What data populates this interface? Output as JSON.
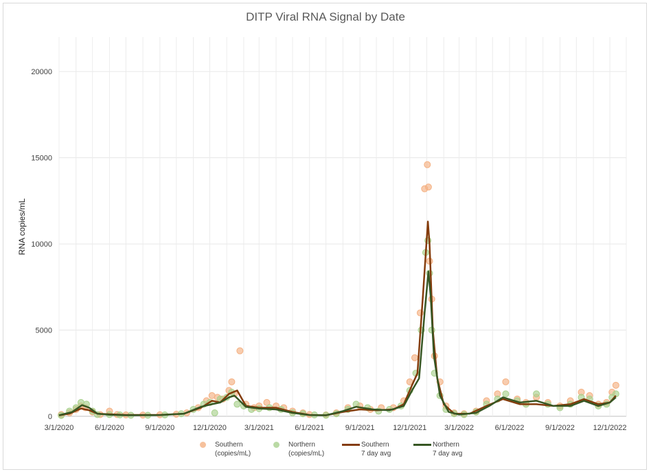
{
  "chart_data": {
    "type": "scatter",
    "title": "DITP Viral RNA Signal by Date",
    "ylabel": "RNA copies/mL",
    "xlabel": "",
    "ylim": [
      0,
      22000
    ],
    "xlim": [
      "2020-03-01",
      "2022-12-31"
    ],
    "yticks": [
      0,
      5000,
      10000,
      15000,
      20000
    ],
    "xticks": [
      "3/1/2020",
      "6/1/2020",
      "9/1/2020",
      "12/1/2020",
      "3/1/2021",
      "6/1/2021",
      "9/1/2021",
      "12/1/2021",
      "3/1/2022",
      "6/1/2022",
      "9/1/2022",
      "12/1/2022"
    ],
    "grid": true,
    "legend_position": "bottom",
    "colors": {
      "southern_points": "#f4b183",
      "northern_points": "#a9d18e",
      "southern_avg": "#843c0c",
      "northern_avg": "#375623"
    },
    "series": [
      {
        "name": "Southern (copies/mL)",
        "kind": "points",
        "points": [
          [
            "2020-03-05",
            100
          ],
          [
            "2020-03-20",
            200
          ],
          [
            "2020-04-01",
            400
          ],
          [
            "2020-04-10",
            600
          ],
          [
            "2020-04-18",
            500
          ],
          [
            "2020-05-01",
            250
          ],
          [
            "2020-05-15",
            100
          ],
          [
            "2020-06-01",
            300
          ],
          [
            "2020-06-15",
            100
          ],
          [
            "2020-07-01",
            80
          ],
          [
            "2020-08-01",
            70
          ],
          [
            "2020-09-01",
            90
          ],
          [
            "2020-10-01",
            120
          ],
          [
            "2020-10-20",
            200
          ],
          [
            "2020-11-10",
            500
          ],
          [
            "2020-11-25",
            900
          ],
          [
            "2020-12-05",
            1200
          ],
          [
            "2020-12-15",
            1100
          ],
          [
            "2020-12-25",
            1000
          ],
          [
            "2021-01-05",
            1500
          ],
          [
            "2021-01-10",
            2000
          ],
          [
            "2021-01-15",
            1300
          ],
          [
            "2021-01-25",
            3800
          ],
          [
            "2021-02-05",
            700
          ],
          [
            "2021-02-20",
            500
          ],
          [
            "2021-03-01",
            600
          ],
          [
            "2021-03-15",
            800
          ],
          [
            "2021-04-01",
            600
          ],
          [
            "2021-04-15",
            500
          ],
          [
            "2021-05-01",
            300
          ],
          [
            "2021-05-20",
            200
          ],
          [
            "2021-06-01",
            100
          ],
          [
            "2021-07-01",
            80
          ],
          [
            "2021-07-20",
            200
          ],
          [
            "2021-08-10",
            500
          ],
          [
            "2021-09-01",
            600
          ],
          [
            "2021-09-20",
            400
          ],
          [
            "2021-10-10",
            500
          ],
          [
            "2021-11-01",
            500
          ],
          [
            "2021-11-20",
            900
          ],
          [
            "2021-12-01",
            2000
          ],
          [
            "2021-12-10",
            3400
          ],
          [
            "2021-12-20",
            6000
          ],
          [
            "2021-12-28",
            13200
          ],
          [
            "2022-01-02",
            14600
          ],
          [
            "2022-01-04",
            13300
          ],
          [
            "2022-01-06",
            9000
          ],
          [
            "2022-01-10",
            6800
          ],
          [
            "2022-01-15",
            3500
          ],
          [
            "2022-01-25",
            2000
          ],
          [
            "2022-02-05",
            600
          ],
          [
            "2022-02-20",
            200
          ],
          [
            "2022-03-10",
            150
          ],
          [
            "2022-04-01",
            300
          ],
          [
            "2022-04-20",
            900
          ],
          [
            "2022-05-10",
            1300
          ],
          [
            "2022-05-25",
            2000
          ],
          [
            "2022-06-15",
            1000
          ],
          [
            "2022-07-01",
            800
          ],
          [
            "2022-07-20",
            1100
          ],
          [
            "2022-08-10",
            800
          ],
          [
            "2022-09-01",
            600
          ],
          [
            "2022-09-20",
            900
          ],
          [
            "2022-10-10",
            1400
          ],
          [
            "2022-10-25",
            1200
          ],
          [
            "2022-11-10",
            700
          ],
          [
            "2022-11-25",
            800
          ],
          [
            "2022-12-05",
            1400
          ],
          [
            "2022-12-12",
            1800
          ]
        ]
      },
      {
        "name": "Northern (copies/mL)",
        "kind": "points",
        "points": [
          [
            "2020-03-05",
            50
          ],
          [
            "2020-03-20",
            300
          ],
          [
            "2020-04-01",
            500
          ],
          [
            "2020-04-10",
            800
          ],
          [
            "2020-04-20",
            700
          ],
          [
            "2020-05-01",
            300
          ],
          [
            "2020-05-10",
            100
          ],
          [
            "2020-06-01",
            100
          ],
          [
            "2020-06-20",
            80
          ],
          [
            "2020-07-10",
            60
          ],
          [
            "2020-08-10",
            60
          ],
          [
            "2020-09-10",
            80
          ],
          [
            "2020-10-10",
            150
          ],
          [
            "2020-11-01",
            400
          ],
          [
            "2020-11-20",
            700
          ],
          [
            "2020-12-01",
            800
          ],
          [
            "2020-12-10",
            200
          ],
          [
            "2020-12-20",
            1000
          ],
          [
            "2021-01-01",
            1100
          ],
          [
            "2021-01-10",
            1400
          ],
          [
            "2021-01-20",
            700
          ],
          [
            "2021-02-01",
            600
          ],
          [
            "2021-02-15",
            400
          ],
          [
            "2021-03-01",
            450
          ],
          [
            "2021-03-20",
            500
          ],
          [
            "2021-04-10",
            400
          ],
          [
            "2021-05-01",
            200
          ],
          [
            "2021-05-20",
            150
          ],
          [
            "2021-06-10",
            80
          ],
          [
            "2021-07-01",
            60
          ],
          [
            "2021-07-20",
            150
          ],
          [
            "2021-08-10",
            400
          ],
          [
            "2021-08-25",
            700
          ],
          [
            "2021-09-15",
            500
          ],
          [
            "2021-10-05",
            300
          ],
          [
            "2021-10-25",
            400
          ],
          [
            "2021-11-15",
            600
          ],
          [
            "2021-12-01",
            1500
          ],
          [
            "2021-12-12",
            2500
          ],
          [
            "2021-12-22",
            5000
          ],
          [
            "2021-12-30",
            9500
          ],
          [
            "2022-01-03",
            10200
          ],
          [
            "2022-01-06",
            8300
          ],
          [
            "2022-01-10",
            5000
          ],
          [
            "2022-01-15",
            2500
          ],
          [
            "2022-01-25",
            1200
          ],
          [
            "2022-02-05",
            400
          ],
          [
            "2022-02-20",
            150
          ],
          [
            "2022-03-10",
            100
          ],
          [
            "2022-04-01",
            250
          ],
          [
            "2022-04-20",
            700
          ],
          [
            "2022-05-10",
            1000
          ],
          [
            "2022-05-25",
            1300
          ],
          [
            "2022-06-15",
            900
          ],
          [
            "2022-07-01",
            700
          ],
          [
            "2022-07-20",
            1300
          ],
          [
            "2022-08-10",
            700
          ],
          [
            "2022-09-01",
            500
          ],
          [
            "2022-09-20",
            700
          ],
          [
            "2022-10-10",
            1100
          ],
          [
            "2022-10-25",
            1000
          ],
          [
            "2022-11-10",
            600
          ],
          [
            "2022-11-25",
            700
          ],
          [
            "2022-12-05",
            1100
          ],
          [
            "2022-12-12",
            1300
          ]
        ]
      },
      {
        "name": "Southern 7 day avg",
        "kind": "line",
        "points": [
          [
            "2020-03-01",
            50
          ],
          [
            "2020-03-20",
            150
          ],
          [
            "2020-04-10",
            450
          ],
          [
            "2020-04-25",
            350
          ],
          [
            "2020-05-10",
            150
          ],
          [
            "2020-06-01",
            120
          ],
          [
            "2020-07-01",
            80
          ],
          [
            "2020-09-01",
            80
          ],
          [
            "2020-10-15",
            150
          ],
          [
            "2020-11-15",
            500
          ],
          [
            "2020-12-05",
            900
          ],
          [
            "2020-12-20",
            800
          ],
          [
            "2021-01-05",
            1300
          ],
          [
            "2021-01-20",
            1500
          ],
          [
            "2021-02-05",
            600
          ],
          [
            "2021-03-01",
            500
          ],
          [
            "2021-04-01",
            500
          ],
          [
            "2021-05-01",
            250
          ],
          [
            "2021-06-01",
            80
          ],
          [
            "2021-07-01",
            60
          ],
          [
            "2021-08-01",
            250
          ],
          [
            "2021-09-01",
            400
          ],
          [
            "2021-10-01",
            350
          ],
          [
            "2021-11-01",
            400
          ],
          [
            "2021-11-20",
            700
          ],
          [
            "2021-12-05",
            1800
          ],
          [
            "2021-12-15",
            2500
          ],
          [
            "2021-12-25",
            7000
          ],
          [
            "2022-01-03",
            11300
          ],
          [
            "2022-01-06",
            10000
          ],
          [
            "2022-01-12",
            5000
          ],
          [
            "2022-01-20",
            2200
          ],
          [
            "2022-02-01",
            700
          ],
          [
            "2022-02-20",
            150
          ],
          [
            "2022-03-20",
            150
          ],
          [
            "2022-04-20",
            600
          ],
          [
            "2022-05-20",
            1000
          ],
          [
            "2022-06-20",
            700
          ],
          [
            "2022-07-20",
            700
          ],
          [
            "2022-08-20",
            600
          ],
          [
            "2022-09-20",
            700
          ],
          [
            "2022-10-15",
            1000
          ],
          [
            "2022-11-10",
            700
          ],
          [
            "2022-12-01",
            800
          ],
          [
            "2022-12-12",
            1200
          ]
        ]
      },
      {
        "name": "Northern 7 day avg",
        "kind": "line",
        "points": [
          [
            "2020-03-01",
            60
          ],
          [
            "2020-03-25",
            250
          ],
          [
            "2020-04-12",
            650
          ],
          [
            "2020-04-25",
            500
          ],
          [
            "2020-05-10",
            150
          ],
          [
            "2020-06-01",
            90
          ],
          [
            "2020-07-01",
            60
          ],
          [
            "2020-09-01",
            70
          ],
          [
            "2020-10-15",
            150
          ],
          [
            "2020-11-15",
            550
          ],
          [
            "2020-12-05",
            700
          ],
          [
            "2020-12-20",
            800
          ],
          [
            "2021-01-05",
            1100
          ],
          [
            "2021-01-15",
            1200
          ],
          [
            "2021-02-05",
            550
          ],
          [
            "2021-03-01",
            450
          ],
          [
            "2021-04-01",
            400
          ],
          [
            "2021-05-01",
            200
          ],
          [
            "2021-06-01",
            70
          ],
          [
            "2021-07-01",
            60
          ],
          [
            "2021-08-01",
            300
          ],
          [
            "2021-08-25",
            550
          ],
          [
            "2021-09-25",
            400
          ],
          [
            "2021-10-25",
            350
          ],
          [
            "2021-11-20",
            600
          ],
          [
            "2021-12-05",
            1500
          ],
          [
            "2021-12-18",
            2200
          ],
          [
            "2021-12-28",
            6000
          ],
          [
            "2022-01-04",
            8400
          ],
          [
            "2022-01-08",
            7000
          ],
          [
            "2022-01-14",
            3500
          ],
          [
            "2022-01-25",
            1200
          ],
          [
            "2022-02-10",
            250
          ],
          [
            "2022-03-01",
            100
          ],
          [
            "2022-04-01",
            200
          ],
          [
            "2022-04-25",
            600
          ],
          [
            "2022-05-20",
            1100
          ],
          [
            "2022-06-20",
            800
          ],
          [
            "2022-07-20",
            900
          ],
          [
            "2022-08-20",
            600
          ],
          [
            "2022-09-20",
            600
          ],
          [
            "2022-10-15",
            900
          ],
          [
            "2022-11-10",
            600
          ],
          [
            "2022-12-01",
            800
          ],
          [
            "2022-12-12",
            1100
          ]
        ]
      }
    ],
    "legend": [
      {
        "line1": "Southern",
        "line2": "(copies/mL)",
        "marker": "circle",
        "color": "#f4b183"
      },
      {
        "line1": "Northern",
        "line2": "(copies/mL)",
        "marker": "circle",
        "color": "#a9d18e"
      },
      {
        "line1": "Southern",
        "line2": "7 day avg",
        "marker": "line",
        "color": "#843c0c"
      },
      {
        "line1": "Northern",
        "line2": "7 day avg",
        "marker": "line",
        "color": "#375623"
      }
    ]
  }
}
